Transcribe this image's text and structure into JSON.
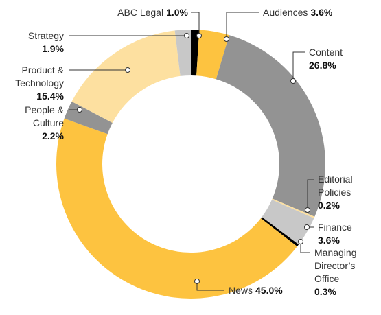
{
  "chart_data": {
    "type": "pie",
    "donut": true,
    "categories": [
      "ABC Legal",
      "Audiences",
      "Content",
      "Editorial Policies",
      "Finance",
      "Managing Director’s Office",
      "News",
      "People & Culture",
      "Product & Technology",
      "Strategy"
    ],
    "values": [
      1.0,
      3.6,
      26.8,
      0.2,
      3.6,
      0.3,
      45.0,
      2.2,
      15.4,
      1.9
    ],
    "value_labels": [
      "1.0%",
      "3.6%",
      "26.8%",
      "0.2%",
      "3.6%",
      "0.3%",
      "45.0%",
      "2.2%",
      "15.4%",
      "1.9%"
    ],
    "colors": [
      "#000000",
      "#fdc340",
      "#939393",
      "#fde0a0",
      "#c8c8c8",
      "#000000",
      "#fdc340",
      "#939393",
      "#fde0a0",
      "#c8c8c8"
    ]
  }
}
